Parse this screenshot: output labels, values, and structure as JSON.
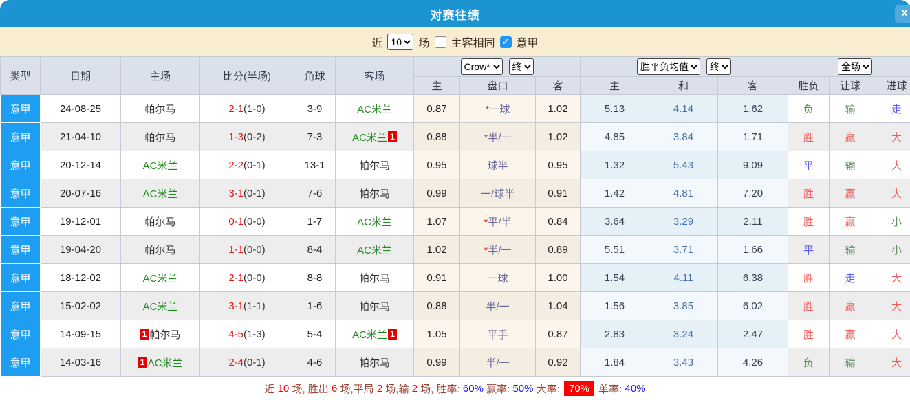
{
  "title": "对赛往绩",
  "close_label": "X",
  "filter": {
    "near_label": "近",
    "count_value": "10",
    "matches_label": "场",
    "same_venue_label": "主客相同",
    "same_venue_checked": false,
    "league_label": "意甲",
    "league_checked": true
  },
  "table": {
    "main_headers": [
      "类型",
      "日期",
      "主场",
      "比分(半场)",
      "角球",
      "客场"
    ],
    "group_selects": {
      "odds_company": "Crow*",
      "odds_time": "终",
      "mean": "胜平负均值",
      "mean_time": "终",
      "scope": "全场"
    },
    "sub_headers": [
      "主",
      "盘口",
      "客",
      "主",
      "和",
      "客",
      "胜负",
      "让球",
      "进球"
    ],
    "rows": [
      {
        "league": "意甲",
        "date": "24-08-25",
        "home": {
          "name": "帕尔马",
          "color": "black",
          "badge": null
        },
        "score": {
          "main": "2-1",
          "half": "(1-0)"
        },
        "corners": "3-9",
        "away": {
          "name": "AC米兰",
          "color": "green",
          "badge": null
        },
        "odds": {
          "home": "0.87",
          "star": true,
          "handicap": "一球",
          "away": "1.02"
        },
        "mean": {
          "home": "5.13",
          "draw": "4.14",
          "away": "1.62"
        },
        "result": {
          "outcome": "负",
          "outcome_color": "green",
          "handicap": "输",
          "handicap_color": "green",
          "goals": "走",
          "goals_color": "blue"
        }
      },
      {
        "league": "意甲",
        "date": "21-04-10",
        "home": {
          "name": "帕尔马",
          "color": "black",
          "badge": null
        },
        "score": {
          "main": "1-3",
          "half": "(0-2)"
        },
        "corners": "7-3",
        "away": {
          "name": "AC米兰",
          "color": "green",
          "badge": "1"
        },
        "odds": {
          "home": "0.88",
          "star": true,
          "handicap": "半/一",
          "away": "1.02"
        },
        "mean": {
          "home": "4.85",
          "draw": "3.84",
          "away": "1.71"
        },
        "result": {
          "outcome": "胜",
          "outcome_color": "red",
          "handicap": "赢",
          "handicap_color": "red",
          "goals": "大",
          "goals_color": "red"
        }
      },
      {
        "league": "意甲",
        "date": "20-12-14",
        "home": {
          "name": "AC米兰",
          "color": "green",
          "badge": null
        },
        "score": {
          "main": "2-2",
          "half": "(0-1)"
        },
        "corners": "13-1",
        "away": {
          "name": "帕尔马",
          "color": "black",
          "badge": null
        },
        "odds": {
          "home": "0.95",
          "star": false,
          "handicap": "球半",
          "away": "0.95"
        },
        "mean": {
          "home": "1.32",
          "draw": "5.43",
          "away": "9.09"
        },
        "result": {
          "outcome": "平",
          "outcome_color": "blue",
          "handicap": "输",
          "handicap_color": "green",
          "goals": "大",
          "goals_color": "red"
        }
      },
      {
        "league": "意甲",
        "date": "20-07-16",
        "home": {
          "name": "AC米兰",
          "color": "green",
          "badge": null
        },
        "score": {
          "main": "3-1",
          "half": "(0-1)"
        },
        "corners": "7-6",
        "away": {
          "name": "帕尔马",
          "color": "black",
          "badge": null
        },
        "odds": {
          "home": "0.99",
          "star": false,
          "handicap": "一/球半",
          "away": "0.91"
        },
        "mean": {
          "home": "1.42",
          "draw": "4.81",
          "away": "7.20"
        },
        "result": {
          "outcome": "胜",
          "outcome_color": "red",
          "handicap": "赢",
          "handicap_color": "red",
          "goals": "大",
          "goals_color": "red"
        }
      },
      {
        "league": "意甲",
        "date": "19-12-01",
        "home": {
          "name": "帕尔马",
          "color": "black",
          "badge": null
        },
        "score": {
          "main": "0-1",
          "half": "(0-0)"
        },
        "corners": "1-7",
        "away": {
          "name": "AC米兰",
          "color": "green",
          "badge": null
        },
        "odds": {
          "home": "1.07",
          "star": true,
          "handicap": "平/半",
          "away": "0.84"
        },
        "mean": {
          "home": "3.64",
          "draw": "3.29",
          "away": "2.11"
        },
        "result": {
          "outcome": "胜",
          "outcome_color": "red",
          "handicap": "赢",
          "handicap_color": "red",
          "goals": "小",
          "goals_color": "green"
        }
      },
      {
        "league": "意甲",
        "date": "19-04-20",
        "home": {
          "name": "帕尔马",
          "color": "black",
          "badge": null
        },
        "score": {
          "main": "1-1",
          "half": "(0-0)"
        },
        "corners": "8-4",
        "away": {
          "name": "AC米兰",
          "color": "green",
          "badge": null
        },
        "odds": {
          "home": "1.02",
          "star": true,
          "handicap": "半/一",
          "away": "0.89"
        },
        "mean": {
          "home": "5.51",
          "draw": "3.71",
          "away": "1.66"
        },
        "result": {
          "outcome": "平",
          "outcome_color": "blue",
          "handicap": "输",
          "handicap_color": "green",
          "goals": "小",
          "goals_color": "green"
        }
      },
      {
        "league": "意甲",
        "date": "18-12-02",
        "home": {
          "name": "AC米兰",
          "color": "green",
          "badge": null
        },
        "score": {
          "main": "2-1",
          "half": "(0-0)"
        },
        "corners": "8-8",
        "away": {
          "name": "帕尔马",
          "color": "black",
          "badge": null
        },
        "odds": {
          "home": "0.91",
          "star": false,
          "handicap": "一球",
          "away": "1.00"
        },
        "mean": {
          "home": "1.54",
          "draw": "4.11",
          "away": "6.38"
        },
        "result": {
          "outcome": "胜",
          "outcome_color": "red",
          "handicap": "走",
          "handicap_color": "blue",
          "goals": "大",
          "goals_color": "red"
        }
      },
      {
        "league": "意甲",
        "date": "15-02-02",
        "home": {
          "name": "AC米兰",
          "color": "green",
          "badge": null
        },
        "score": {
          "main": "3-1",
          "half": "(1-1)"
        },
        "corners": "1-6",
        "away": {
          "name": "帕尔马",
          "color": "black",
          "badge": null
        },
        "odds": {
          "home": "0.88",
          "star": false,
          "handicap": "半/一",
          "away": "1.04"
        },
        "mean": {
          "home": "1.56",
          "draw": "3.85",
          "away": "6.02"
        },
        "result": {
          "outcome": "胜",
          "outcome_color": "red",
          "handicap": "赢",
          "handicap_color": "red",
          "goals": "大",
          "goals_color": "red"
        }
      },
      {
        "league": "意甲",
        "date": "14-09-15",
        "home": {
          "name": "帕尔马",
          "color": "black",
          "badge": "1"
        },
        "score": {
          "main": "4-5",
          "half": "(1-3)"
        },
        "corners": "5-4",
        "away": {
          "name": "AC米兰",
          "color": "green",
          "badge": "1"
        },
        "odds": {
          "home": "1.05",
          "star": false,
          "handicap": "平手",
          "away": "0.87"
        },
        "mean": {
          "home": "2.83",
          "draw": "3.24",
          "away": "2.47"
        },
        "result": {
          "outcome": "胜",
          "outcome_color": "red",
          "handicap": "赢",
          "handicap_color": "red",
          "goals": "大",
          "goals_color": "red"
        }
      },
      {
        "league": "意甲",
        "date": "14-03-16",
        "home": {
          "name": "AC米兰",
          "color": "green",
          "badge": "1"
        },
        "score": {
          "main": "2-4",
          "half": "(0-1)"
        },
        "corners": "4-6",
        "away": {
          "name": "帕尔马",
          "color": "black",
          "badge": null
        },
        "odds": {
          "home": "0.99",
          "star": false,
          "handicap": "半/一",
          "away": "0.92"
        },
        "mean": {
          "home": "1.84",
          "draw": "3.43",
          "away": "4.26"
        },
        "result": {
          "outcome": "负",
          "outcome_color": "green",
          "handicap": "输",
          "handicap_color": "green",
          "goals": "大",
          "goals_color": "red"
        }
      }
    ]
  },
  "summary": {
    "segments": [
      {
        "text": "近 ",
        "style": "label"
      },
      {
        "text": "10",
        "style": "num"
      },
      {
        "text": " 场, ",
        "style": "label"
      },
      {
        "text": "胜出 ",
        "style": "label"
      },
      {
        "text": "6",
        "style": "num"
      },
      {
        "text": " 场,",
        "style": "label"
      },
      {
        "text": "平局 ",
        "style": "label"
      },
      {
        "text": "2",
        "style": "num"
      },
      {
        "text": " 场,",
        "style": "label"
      },
      {
        "text": "输 ",
        "style": "label"
      },
      {
        "text": "2",
        "style": "num"
      },
      {
        "text": " 场, ",
        "style": "label"
      },
      {
        "text": "胜率: ",
        "style": "label"
      },
      {
        "text": "60%",
        "style": "pct"
      },
      {
        "text": " 赢率: ",
        "style": "label"
      },
      {
        "text": "50%",
        "style": "pct"
      },
      {
        "text": " 大率: ",
        "style": "label"
      },
      {
        "text": "70%",
        "style": "highlight"
      },
      {
        "text": " 单率: ",
        "style": "label"
      },
      {
        "text": "40%",
        "style": "pct"
      }
    ]
  },
  "colors": {
    "title_bar": "#1c94d2",
    "league_cell": "#1e9ef0",
    "checkbox_checked": "#2196f3",
    "score_red": "#ee1111",
    "team_green": "#1e8c1e",
    "handicap_purple": "#6c6c9c",
    "mean_draw_blue": "#4470b2",
    "result_red": "#f15b5b",
    "result_green": "#5f8f5f",
    "result_blue": "#5c5cee",
    "summary_label_brown": "#9a4434",
    "summary_pct_blue": "#1515ee",
    "highlight_bg": "#ff0000"
  }
}
